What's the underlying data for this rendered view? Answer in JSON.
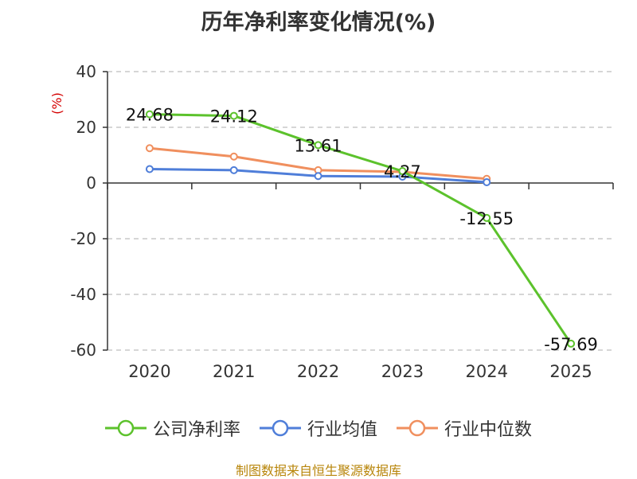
{
  "chart_data": {
    "type": "line",
    "title": "历年净利率变化情况(%)",
    "xlabel": "",
    "ylabel": "(%)",
    "categories": [
      "2020",
      "2021",
      "2022",
      "2023",
      "2024",
      "2025"
    ],
    "ylim": [
      -60,
      40
    ],
    "yticks": [
      40,
      20,
      0,
      -20,
      -40,
      -60
    ],
    "grid": true,
    "legend_position": "bottom",
    "series": [
      {
        "name": "公司净利率",
        "color": "#5cc22c",
        "values": [
          24.68,
          24.12,
          13.61,
          4.27,
          -12.55,
          -57.69
        ],
        "labels": [
          "24.68",
          "24.12",
          "13.61",
          "4.27",
          "-12.55",
          "-57.69"
        ]
      },
      {
        "name": "行业均值",
        "color": "#4f7ed9",
        "values": [
          5.0,
          4.6,
          2.5,
          2.3,
          0.3,
          null
        ]
      },
      {
        "name": "行业中位数",
        "color": "#f08f5e",
        "values": [
          12.5,
          9.5,
          4.6,
          4.0,
          1.5,
          null
        ]
      }
    ]
  },
  "footer": {
    "source": "制图数据来自恒生聚源数据库"
  }
}
